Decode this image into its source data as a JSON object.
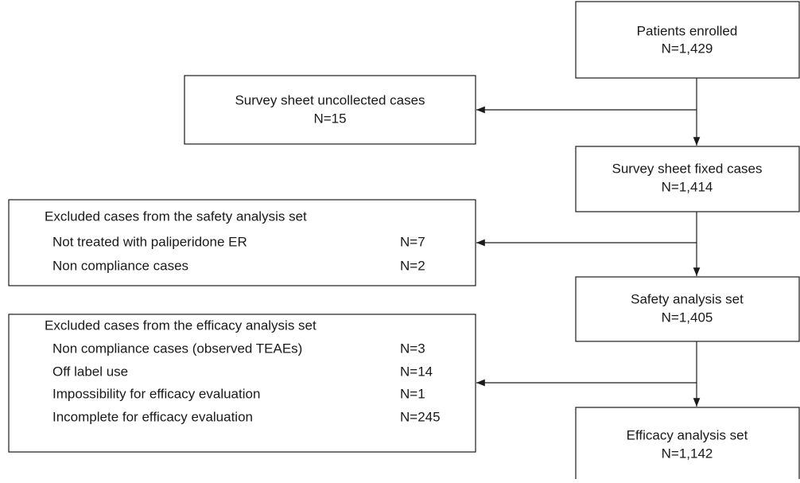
{
  "nodes": [
    {
      "label": "Patients enrolled",
      "count": "N=1,429"
    },
    {
      "label": "Survey sheet fixed cases",
      "count": "N=1,414"
    },
    {
      "label": "Safety analysis set",
      "count": "N=1,405"
    },
    {
      "label": "Efficacy analysis set",
      "count": "N=1,142"
    }
  ],
  "exclusions": [
    {
      "label": "Survey sheet uncollected cases",
      "count": "N=15"
    },
    {
      "title": "Excluded cases from the safety analysis set",
      "items": [
        {
          "label": "Not treated with paliperidone ER",
          "count": "N=7"
        },
        {
          "label": "Non compliance cases",
          "count": "N=2"
        }
      ]
    },
    {
      "title": "Excluded cases from the efficacy analysis set",
      "items": [
        {
          "label": "Non compliance cases (observed TEAEs)",
          "count": "N=3"
        },
        {
          "label": "Off label use",
          "count": "N=14"
        },
        {
          "label": "Impossibility for efficacy evaluation",
          "count": "N=1"
        },
        {
          "label": "Incomplete for efficacy evaluation",
          "count": "N=245"
        }
      ]
    }
  ]
}
